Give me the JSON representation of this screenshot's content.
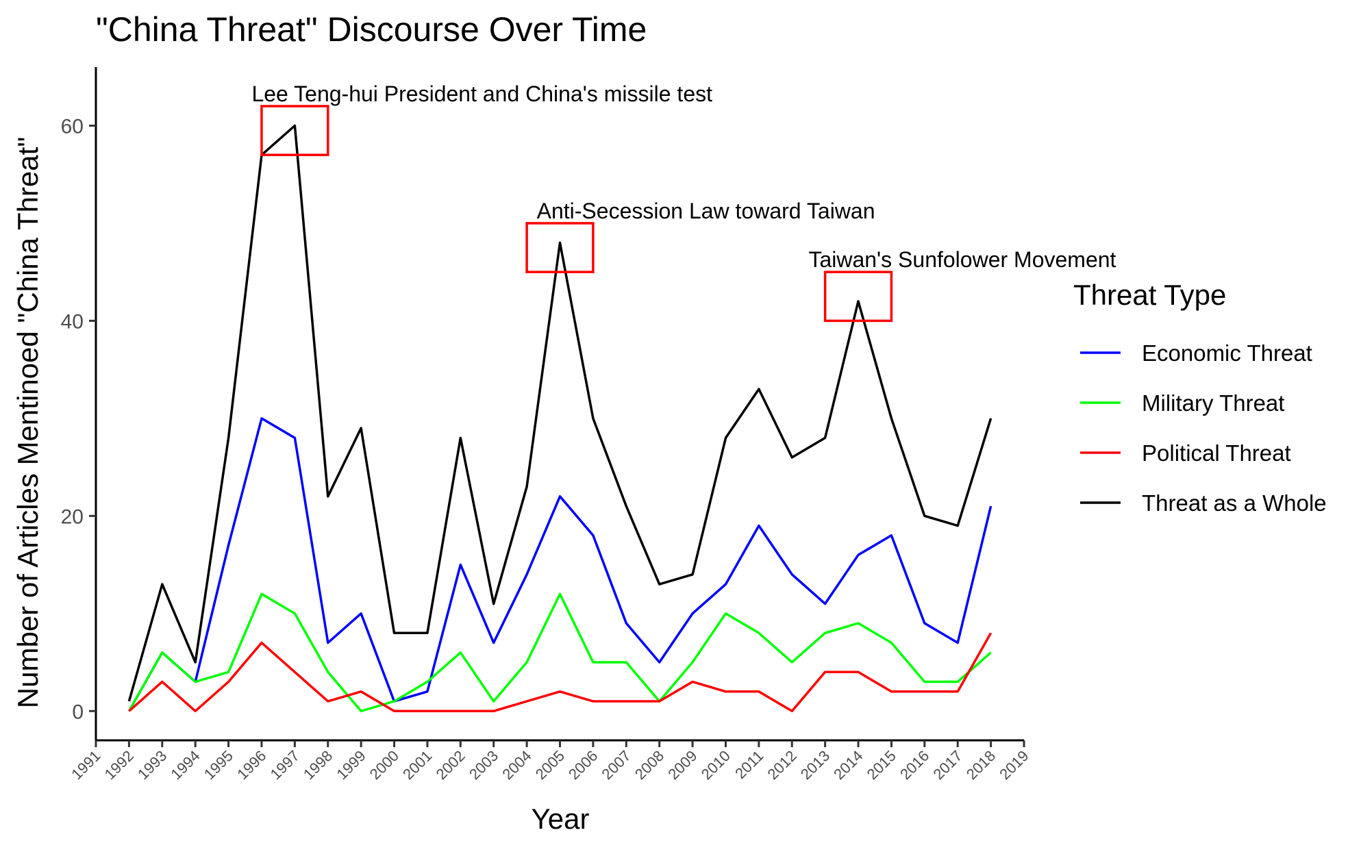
{
  "chart_data": {
    "type": "line",
    "title": "\"China Threat\" Discourse Over Time",
    "xlabel": "Year",
    "ylabel": "Number of Articles Mentinoed \"China Threat\"",
    "x_ticks": [
      "1991",
      "1992",
      "1993",
      "1994",
      "1995",
      "1996",
      "1997",
      "1998",
      "1999",
      "2000",
      "2001",
      "2002",
      "2003",
      "2004",
      "2005",
      "2006",
      "2007",
      "2008",
      "2009",
      "2010",
      "2011",
      "2012",
      "2013",
      "2014",
      "2015",
      "2016",
      "2017",
      "2018",
      "2019"
    ],
    "xlim": [
      1991,
      2019
    ],
    "y_ticks": [
      0,
      20,
      40,
      60
    ],
    "ylim": [
      -3,
      66
    ],
    "grid": false,
    "legend": {
      "title": "Threat Type",
      "position": "right"
    },
    "x": [
      1992,
      1993,
      1994,
      1995,
      1996,
      1997,
      1998,
      1999,
      2000,
      2001,
      2002,
      2003,
      2004,
      2005,
      2006,
      2007,
      2008,
      2009,
      2010,
      2011,
      2012,
      2013,
      2014,
      2015,
      2016,
      2017,
      2018
    ],
    "series": [
      {
        "name": "Economic Threat",
        "color": "#0000ff",
        "values": [
          0,
          6,
          3,
          17,
          30,
          28,
          7,
          10,
          1,
          2,
          15,
          7,
          14,
          22,
          18,
          9,
          5,
          10,
          13,
          19,
          14,
          11,
          16,
          18,
          9,
          7,
          21
        ]
      },
      {
        "name": "Military Threat",
        "color": "#00ff00",
        "values": [
          0,
          6,
          3,
          4,
          12,
          10,
          4,
          0,
          1,
          3,
          6,
          1,
          5,
          12,
          5,
          5,
          1,
          5,
          10,
          8,
          5,
          8,
          9,
          7,
          3,
          3,
          6
        ]
      },
      {
        "name": "Political Threat",
        "color": "#ff0000",
        "values": [
          0,
          3,
          0,
          3,
          7,
          4,
          1,
          2,
          0,
          0,
          0,
          0,
          1,
          2,
          1,
          1,
          1,
          3,
          2,
          2,
          0,
          4,
          4,
          2,
          2,
          2,
          8
        ]
      },
      {
        "name": "Threat as a Whole",
        "color": "#000000",
        "values": [
          1,
          13,
          5,
          28,
          57,
          60,
          22,
          29,
          8,
          8,
          28,
          11,
          23,
          48,
          30,
          21,
          13,
          14,
          28,
          33,
          26,
          28,
          42,
          30,
          20,
          19,
          30
        ]
      }
    ],
    "annotations": [
      {
        "text": "Lee Teng-hui President and China's missile test",
        "x": 1995.7,
        "y": 62.5,
        "box": {
          "xmin": 1996,
          "xmax": 1998,
          "ymin": 57,
          "ymax": 62
        }
      },
      {
        "text": "Anti-Secession Law toward Taiwan",
        "x": 2004.3,
        "y": 50.5,
        "box": {
          "xmin": 2004,
          "xmax": 2006,
          "ymin": 45,
          "ymax": 50
        }
      },
      {
        "text": "Taiwan's Sunfolower Movement",
        "x": 2012.5,
        "y": 45.5,
        "box": {
          "xmin": 2013,
          "xmax": 2015,
          "ymin": 40,
          "ymax": 45
        }
      }
    ]
  }
}
